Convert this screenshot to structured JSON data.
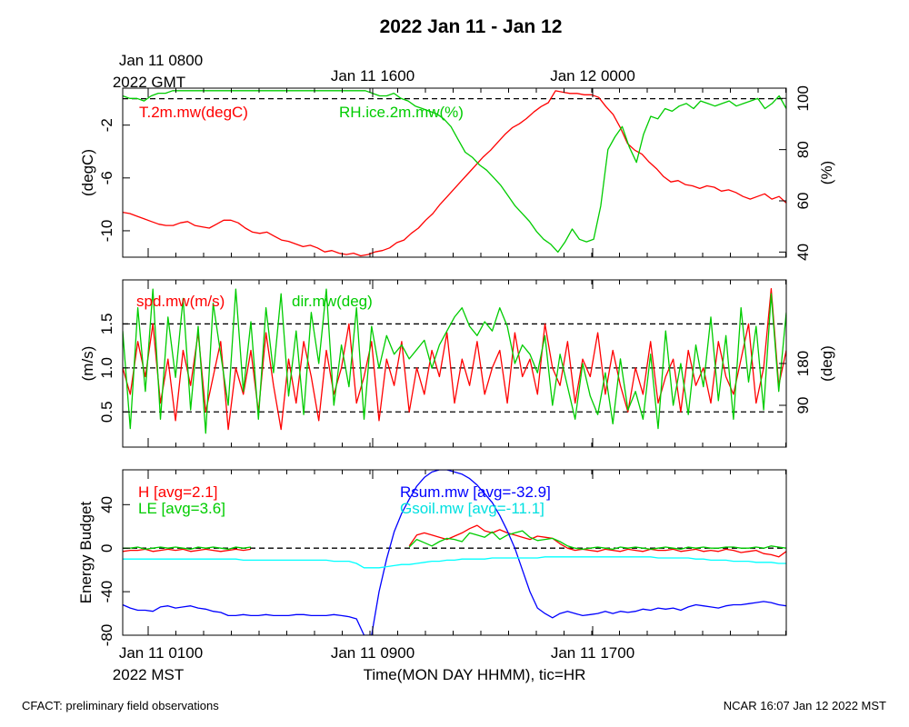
{
  "title": "2022 Jan 11 - Jan 12",
  "footer_left": "CFACT: preliminary field observations",
  "footer_right": "NCAR 16:07 Jan 12 2022 MST",
  "colors": {
    "red": "#ff0000",
    "green": "#00cc00",
    "blue": "#0000ff",
    "cyan": "#00ffff",
    "black": "#000000"
  },
  "chart_data": [
    {
      "type": "line",
      "top_axis_labels": [
        "Jan 11 0800",
        "Jan 11 1600",
        "Jan 12 0000"
      ],
      "top_axis_sublabel": "2022 GMT",
      "ylabel": "(degC)",
      "ylabel_right": "(%)",
      "ylim": [
        -12,
        0.8
      ],
      "ylim_right": [
        38,
        104
      ],
      "yticks": [
        "-10",
        "-6",
        "-2"
      ],
      "yticks_right": [
        "40",
        "60",
        "80",
        "100"
      ],
      "reference_line": 0,
      "series": [
        {
          "name": "T.2m.mw(degC)",
          "axis": "left",
          "color": "#ff0000",
          "values": [
            -8.6,
            -8.7,
            -8.9,
            -9.1,
            -9.3,
            -9.5,
            -9.6,
            -9.6,
            -9.4,
            -9.3,
            -9.6,
            -9.7,
            -9.8,
            -9.5,
            -9.2,
            -9.2,
            -9.4,
            -9.8,
            -10.1,
            -10.2,
            -10.1,
            -10.4,
            -10.7,
            -10.8,
            -11.0,
            -11.2,
            -11.1,
            -11.3,
            -11.6,
            -11.5,
            -11.7,
            -11.8,
            -11.7,
            -11.9,
            -11.8,
            -11.6,
            -11.5,
            -11.3,
            -10.9,
            -10.7,
            -10.2,
            -9.8,
            -9.2,
            -8.7,
            -8.0,
            -7.4,
            -6.8,
            -6.2,
            -5.6,
            -5.0,
            -4.4,
            -3.9,
            -3.3,
            -2.7,
            -2.2,
            -1.9,
            -1.5,
            -1.0,
            -0.6,
            -0.3,
            0.6,
            0.5,
            0.4,
            0.4,
            0.3,
            0.3,
            0.1,
            -0.6,
            -1.2,
            -2.2,
            -3.4,
            -3.9,
            -4.2,
            -4.8,
            -5.3,
            -5.9,
            -6.3,
            -6.2,
            -6.5,
            -6.6,
            -6.8,
            -6.6,
            -6.7,
            -7.0,
            -6.9,
            -7.1,
            -7.4,
            -7.6,
            -7.4,
            -7.2,
            -7.6,
            -7.4,
            -7.9
          ]
        },
        {
          "name": "RH.ice.2m.mw(%)",
          "axis": "right",
          "color": "#00cc00",
          "values": [
            101,
            100,
            100,
            99,
            101,
            102,
            102,
            103,
            103,
            103,
            103,
            103,
            103,
            103,
            103,
            103,
            103,
            103,
            103,
            103,
            103,
            103,
            103,
            103,
            103,
            103,
            103,
            103,
            103,
            103,
            103,
            103,
            103,
            103,
            103,
            102,
            101,
            101,
            102,
            100,
            99,
            97,
            96,
            95,
            94,
            92,
            89,
            84,
            79,
            77,
            74,
            72,
            69,
            66,
            62,
            58,
            55,
            52,
            48,
            45,
            43,
            40,
            44,
            49,
            45,
            44,
            45,
            58,
            80,
            85,
            89,
            81,
            75,
            86,
            93,
            92,
            96,
            95,
            97,
            98,
            96,
            99,
            98,
            97,
            98,
            99,
            97,
            98,
            99,
            100,
            96,
            98,
            101,
            96
          ]
        }
      ]
    },
    {
      "type": "line",
      "ylabel": "(m/s)",
      "ylabel_right": "(deg)",
      "ylim": [
        0.1,
        2.0
      ],
      "ylim_right": [
        0,
        360
      ],
      "yticks": [
        "0.5",
        "1.0",
        "1.5"
      ],
      "yticks_right": [
        "90",
        "180"
      ],
      "reference_lines": [
        0.5,
        1.0,
        1.5
      ],
      "series": [
        {
          "name": "spd.mw(m/s)",
          "axis": "left",
          "color": "#ff0000",
          "values": [
            1.0,
            0.7,
            1.3,
            0.9,
            1.5,
            0.6,
            1.1,
            0.4,
            1.2,
            0.8,
            1.4,
            0.5,
            0.9,
            1.3,
            0.3,
            1.0,
            0.7,
            1.2,
            0.5,
            1.4,
            0.8,
            0.3,
            1.1,
            0.6,
            1.3,
            0.9,
            0.4,
            1.2,
            0.7,
            1.0,
            1.5,
            0.6,
            0.9,
            1.3,
            0.4,
            1.1,
            0.8,
            1.3,
            0.5,
            1.0,
            0.7,
            1.2,
            0.9,
            1.4,
            0.6,
            1.1,
            0.8,
            1.3,
            0.7,
            1.0,
            1.2,
            0.6,
            1.4,
            0.9,
            1.1,
            0.7,
            1.5,
            1.0,
            0.8,
            1.3,
            0.6,
            1.1,
            0.9,
            1.4,
            0.7,
            1.2,
            0.8,
            0.5,
            1.0,
            0.7,
            1.3,
            0.6,
            0.9,
            1.1,
            0.5,
            1.2,
            0.8,
            1.0,
            0.6,
            1.3,
            0.9,
            0.7,
            1.1,
            1.5,
            0.6,
            1.0,
            1.9,
            0.8,
            1.2
          ]
        },
        {
          "name": "dir.mw(deg)",
          "axis": "right",
          "color": "#00cc00",
          "values": [
            250,
            40,
            300,
            120,
            340,
            60,
            280,
            150,
            320,
            80,
            260,
            30,
            310,
            200,
            90,
            340,
            120,
            270,
            60,
            300,
            160,
            330,
            110,
            250,
            70,
            290,
            180,
            340,
            90,
            220,
            130,
            300,
            60,
            260,
            170,
            240,
            200,
            220,
            190,
            210,
            230,
            170,
            220,
            250,
            280,
            300,
            260,
            240,
            270,
            250,
            300,
            260,
            180,
            220,
            200,
            160,
            240,
            90,
            200,
            130,
            60,
            180,
            110,
            70,
            160,
            50,
            190,
            80,
            120,
            60,
            200,
            40,
            250,
            90,
            180,
            70,
            220,
            130,
            280,
            100,
            240,
            60,
            300,
            140,
            260,
            80,
            330,
            120,
            290
          ]
        }
      ]
    },
    {
      "type": "line",
      "bottom_axis_labels": [
        "Jan 11 0100",
        "Jan 11 0900",
        "Jan 11 1700"
      ],
      "bottom_axis_sublabel": "2022 MST",
      "xlabel": "Time(MON DAY HHMM), tic=HR",
      "ylabel": "Energy Budget",
      "ylim": [
        -80,
        72
      ],
      "yticks": [
        "-80",
        "-40",
        "0",
        "40"
      ],
      "reference_line": 0,
      "series": [
        {
          "name": "H",
          "legend": "H [avg=2.1]",
          "color": "#ff0000",
          "values": [
            -3,
            -2,
            -2,
            -1,
            -3,
            -2,
            -1,
            -2,
            -1,
            -3,
            -2,
            -1,
            -2,
            -3,
            -2,
            -1,
            -2,
            -1,
            null,
            null,
            null,
            null,
            null,
            null,
            null,
            null,
            null,
            null,
            null,
            null,
            null,
            null,
            null,
            null,
            null,
            null,
            null,
            null,
            2,
            12,
            14,
            12,
            10,
            8,
            11,
            14,
            18,
            21,
            16,
            14,
            17,
            14,
            12,
            10,
            8,
            11,
            10,
            9,
            4,
            0,
            -2,
            -1,
            -2,
            -3,
            -1,
            -2,
            -3,
            -1,
            -2,
            -3,
            -1,
            -2,
            -2,
            -1,
            -3,
            -2,
            -1,
            -3,
            -2,
            -3,
            -1,
            -2,
            -4,
            -3,
            -2,
            -5,
            -6,
            -8,
            -3
          ]
        },
        {
          "name": "LE",
          "legend": "LE [avg=3.6]",
          "color": "#00cc00",
          "values": [
            0,
            0,
            1,
            -1,
            0,
            1,
            0,
            1,
            0,
            -1,
            1,
            0,
            1,
            0,
            -1,
            1,
            0,
            1,
            null,
            null,
            null,
            null,
            null,
            null,
            null,
            null,
            null,
            null,
            null,
            null,
            null,
            null,
            null,
            null,
            null,
            null,
            null,
            null,
            1,
            8,
            5,
            2,
            6,
            9,
            8,
            6,
            14,
            12,
            10,
            15,
            8,
            12,
            14,
            16,
            10,
            7,
            8,
            9,
            6,
            2,
            0,
            -1,
            0,
            1,
            0,
            -1,
            1,
            0,
            1,
            0,
            -1,
            0,
            1,
            0,
            -1,
            1,
            0,
            1,
            0,
            0,
            1,
            1,
            0,
            0,
            1,
            0,
            2,
            1,
            0
          ]
        },
        {
          "name": "Rsum.mw",
          "legend": "Rsum.mw [avg=-32.9]",
          "color": "#0000ff",
          "values": [
            -52,
            -55,
            -57,
            -57,
            -58,
            -54,
            -53,
            -55,
            -54,
            -53,
            -55,
            -56,
            -58,
            -59,
            -62,
            -62,
            -61,
            -62,
            -62,
            -61,
            -62,
            -62,
            -62,
            -61,
            -61,
            -62,
            -62,
            -62,
            -61,
            -62,
            -63,
            -65,
            -80,
            -80,
            -40,
            -10,
            15,
            32,
            45,
            57,
            65,
            70,
            72,
            72,
            70,
            68,
            64,
            58,
            50,
            42,
            30,
            16,
            0,
            -20,
            -40,
            -55,
            -60,
            -64,
            -60,
            -58,
            -60,
            -62,
            -61,
            -60,
            -58,
            -60,
            -58,
            -59,
            -58,
            -56,
            -57,
            -55,
            -56,
            -55,
            -57,
            -54,
            -52,
            -53,
            -54,
            -55,
            -53,
            -52,
            -52,
            -51,
            -50,
            -49,
            -50,
            -52,
            -53
          ]
        },
        {
          "name": "Gsoil.mw",
          "legend": "Gsoil.mw [avg=-11.1]",
          "color": "#00ffff",
          "values": [
            -10,
            -10,
            -10,
            -10,
            -10,
            -10,
            -10,
            -10,
            -10,
            -10,
            -10,
            -10,
            -10,
            -10,
            -10,
            -10,
            -11,
            -11,
            -11,
            -11,
            -11,
            -11,
            -11,
            -11,
            -11,
            -11,
            -11,
            -11,
            -12,
            -12,
            -12,
            -14,
            -18,
            -18,
            -18,
            -17,
            -16,
            -15,
            -15,
            -14,
            -13,
            -12,
            -12,
            -11,
            -11,
            -10,
            -10,
            -10,
            -10,
            -9,
            -9,
            -9,
            -9,
            -9,
            -9,
            -9,
            -8,
            -8,
            -8,
            -8,
            -8,
            -8,
            -8,
            -8,
            -8,
            -8,
            -8,
            -8,
            -8,
            -8,
            -8,
            -9,
            -9,
            -9,
            -9,
            -9,
            -10,
            -10,
            -11,
            -11,
            -11,
            -12,
            -12,
            -12,
            -13,
            -13,
            -13,
            -14,
            -14
          ]
        }
      ]
    }
  ]
}
